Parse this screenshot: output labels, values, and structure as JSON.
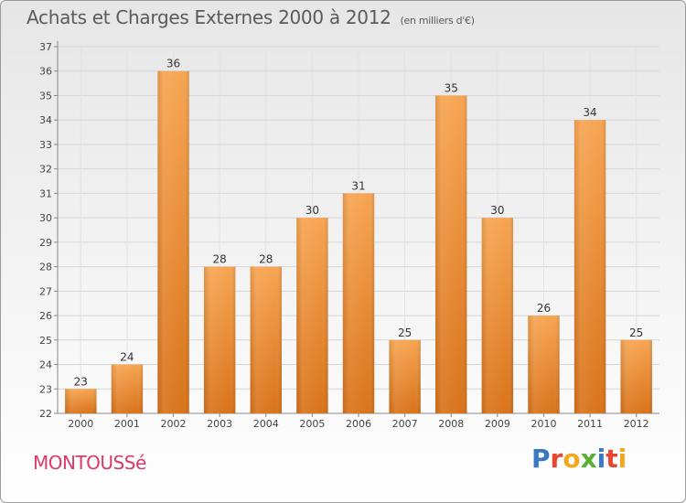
{
  "header": {
    "title": "Achats et Charges Externes 2000 à 2012",
    "unit": "(en milliers d'€)"
  },
  "footer": {
    "commune": "MONTOUSSé",
    "brand_letters": [
      "P",
      "r",
      "o",
      "x",
      "i",
      "t",
      "i"
    ]
  },
  "colors": {
    "bar_top": "#f7a552",
    "bar_bottom": "#d9731a",
    "brand": [
      "#3a78c2",
      "#e8462f",
      "#f2a81d",
      "#5ab033",
      "#3a78c2",
      "#e8462f",
      "#f2a81d"
    ]
  },
  "chart_data": {
    "type": "bar",
    "categories": [
      "2000",
      "2001",
      "2002",
      "2003",
      "2004",
      "2005",
      "2006",
      "2007",
      "2008",
      "2009",
      "2010",
      "2011",
      "2012"
    ],
    "values": [
      23,
      24,
      36,
      28,
      28,
      30,
      31,
      25,
      35,
      30,
      26,
      34,
      25
    ],
    "data_labels": [
      "23",
      "24",
      "36",
      "28",
      "28",
      "30",
      "31",
      "25",
      "35",
      "30",
      "26",
      "34",
      "25"
    ],
    "title": "Achats et Charges Externes 2000 à 2012",
    "unit": "(en milliers d'€)",
    "ylim": [
      22,
      37
    ],
    "yticks": [
      22,
      23,
      24,
      25,
      26,
      27,
      28,
      29,
      30,
      31,
      32,
      33,
      34,
      35,
      36,
      37
    ],
    "ytick_labels": [
      "22",
      "23",
      "24",
      "25",
      "26",
      "27",
      "28",
      "29",
      "30",
      "31",
      "32",
      "33",
      "34",
      "35",
      "36",
      "37"
    ],
    "grid": true
  }
}
